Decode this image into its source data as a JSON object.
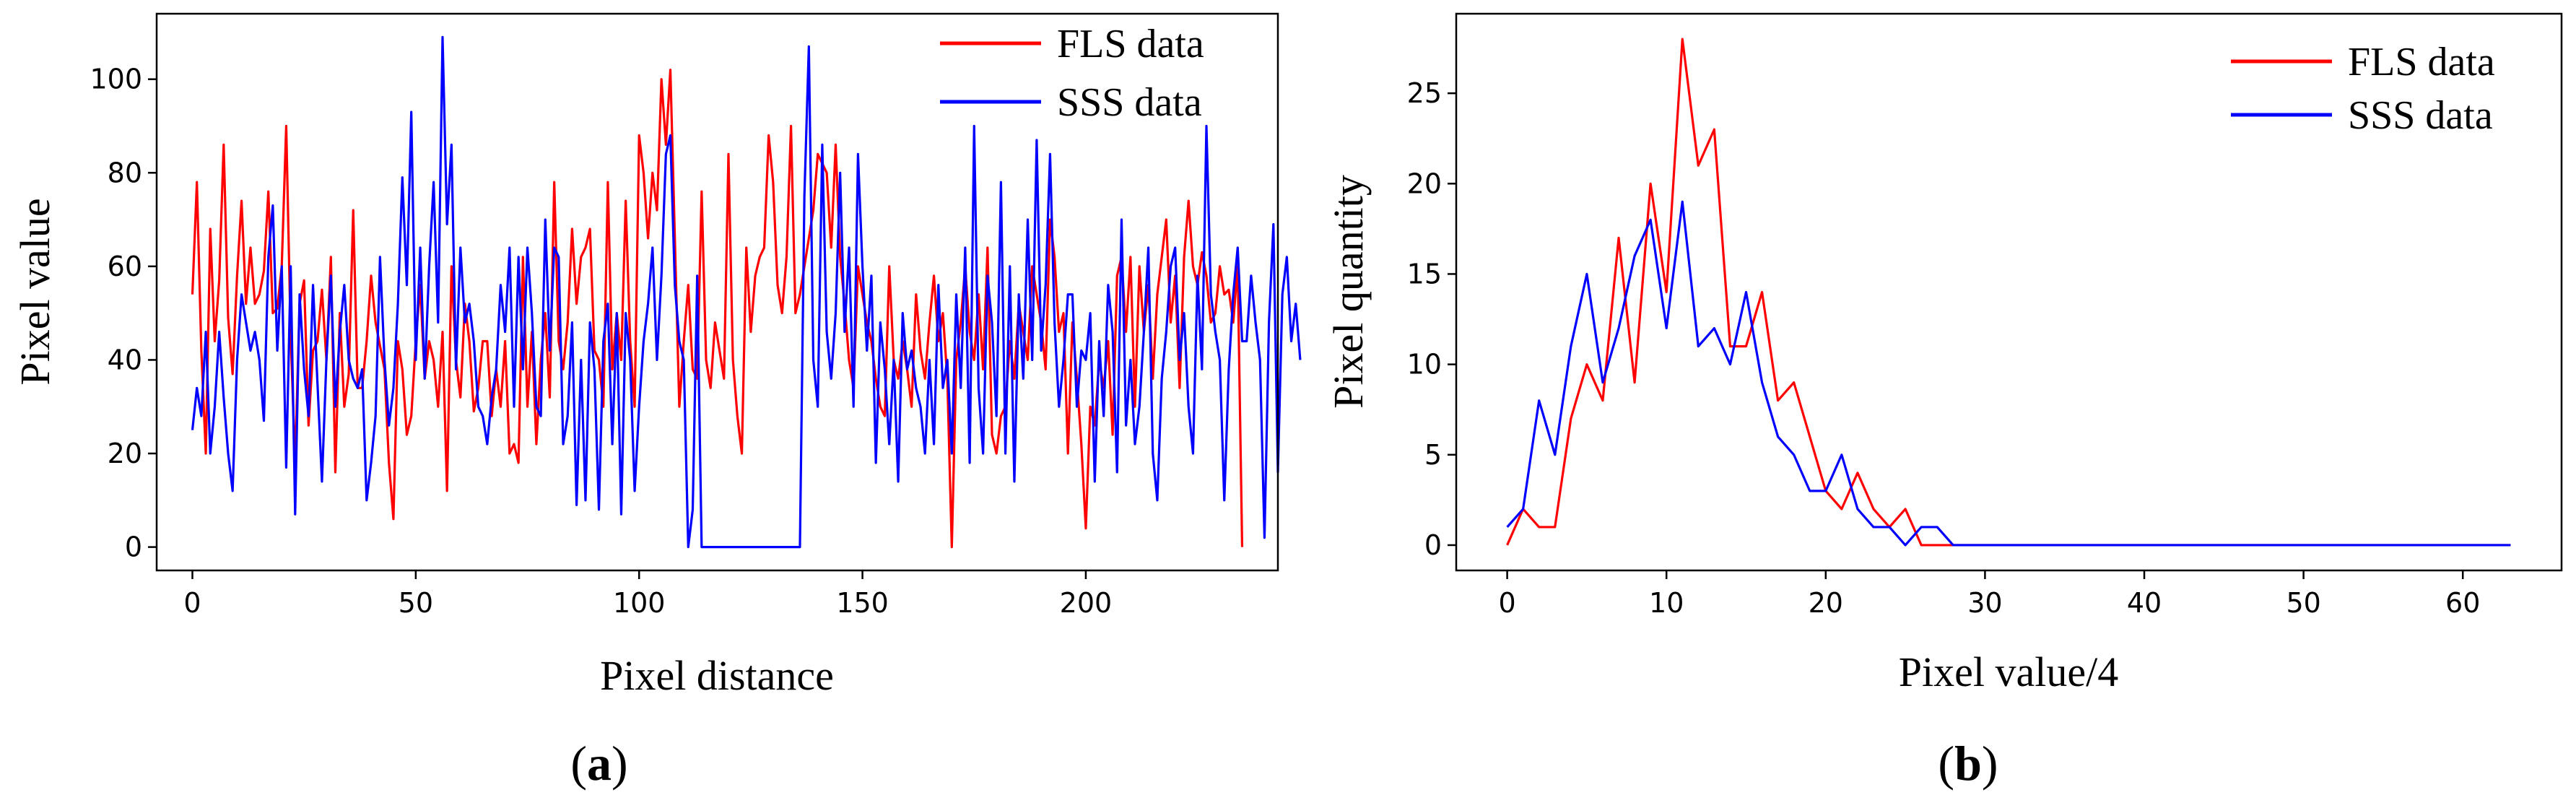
{
  "chart_data": [
    {
      "type": "line",
      "panel": "a",
      "caption": {
        "open": "(",
        "letter": "a",
        "close": ")"
      },
      "xlabel": "Pixel distance",
      "ylabel": "Pixel value",
      "xlim": [
        -8,
        243
      ],
      "ylim": [
        -5,
        114
      ],
      "xticks": [
        0,
        50,
        100,
        150,
        200
      ],
      "yticks": [
        0,
        20,
        40,
        60,
        80,
        100
      ],
      "grid": false,
      "legend": "top-right",
      "series": [
        {
          "name": "FLS data",
          "color": "#ff0000",
          "y": [
            54,
            78,
            42,
            20,
            68,
            44,
            57,
            86,
            49,
            37,
            58,
            74,
            52,
            64,
            52,
            54,
            59,
            76,
            50,
            51,
            60,
            90,
            45,
            18,
            52,
            57,
            26,
            42,
            44,
            55,
            40,
            62,
            16,
            50,
            30,
            37,
            72,
            34,
            34,
            44,
            58,
            48,
            43,
            38,
            18,
            6,
            44,
            38,
            24,
            28,
            44,
            56,
            36,
            44,
            40,
            30,
            46,
            12,
            60,
            40,
            32,
            52,
            44,
            29,
            34,
            44,
            44,
            28,
            38,
            30,
            44,
            20,
            22,
            18,
            62,
            30,
            46,
            22,
            40,
            50,
            32,
            78,
            44,
            38,
            48,
            68,
            52,
            62,
            64,
            68,
            42,
            40,
            30,
            78,
            38,
            50,
            40,
            74,
            44,
            30,
            88,
            80,
            66,
            80,
            72,
            100,
            86,
            102,
            66,
            30,
            44,
            56,
            38,
            36,
            76,
            40,
            34,
            48,
            42,
            36,
            84,
            40,
            28,
            20,
            64,
            46,
            58,
            62,
            64,
            88,
            78,
            56,
            50,
            62,
            90,
            50,
            54,
            60,
            66,
            72,
            84,
            82,
            80,
            64,
            86,
            62,
            52,
            40,
            34,
            60,
            54,
            48,
            44,
            36,
            30,
            28,
            60,
            40,
            36,
            44,
            38,
            30,
            54,
            42,
            36,
            48,
            58,
            44,
            50,
            36,
            0,
            40,
            48,
            60,
            46,
            40,
            54,
            38,
            64,
            24,
            20,
            28,
            30,
            44,
            36,
            52,
            46,
            40,
            60,
            54,
            48,
            38,
            70,
            62,
            46,
            50,
            20,
            48,
            36,
            22,
            4,
            30,
            26,
            40,
            34,
            44,
            24,
            58,
            62,
            46,
            62,
            30,
            60,
            46,
            56,
            36,
            54,
            62,
            70,
            48,
            58,
            34,
            62,
            74,
            60,
            56,
            63,
            58,
            48,
            50,
            60,
            54,
            55,
            48,
            60,
            0
          ]
        },
        {
          "name": "SSS data",
          "color": "#0000ff",
          "y": [
            25,
            34,
            28,
            46,
            20,
            30,
            46,
            32,
            20,
            12,
            40,
            54,
            48,
            42,
            46,
            40,
            27,
            62,
            73,
            42,
            60,
            17,
            60,
            7,
            54,
            38,
            28,
            56,
            35,
            14,
            40,
            58,
            30,
            46,
            56,
            40,
            36,
            34,
            38,
            10,
            18,
            28,
            62,
            40,
            26,
            34,
            52,
            79,
            56,
            93,
            40,
            64,
            36,
            60,
            78,
            48,
            109,
            69,
            86,
            38,
            64,
            48,
            52,
            44,
            30,
            28,
            22,
            32,
            38,
            56,
            46,
            64,
            30,
            62,
            38,
            64,
            50,
            30,
            28,
            70,
            42,
            64,
            62,
            22,
            28,
            48,
            9,
            40,
            10,
            48,
            38,
            8,
            44,
            52,
            22,
            50,
            7,
            50,
            40,
            12,
            30,
            44,
            52,
            64,
            40,
            58,
            84,
            88,
            56,
            44,
            40,
            0,
            8,
            58,
            0,
            0,
            0,
            0,
            0,
            0,
            0,
            0,
            0,
            0,
            0,
            0,
            0,
            0,
            0,
            0,
            0,
            0,
            0,
            0,
            0,
            0,
            0,
            75,
            107,
            40,
            30,
            86,
            46,
            36,
            50,
            80,
            46,
            64,
            30,
            84,
            60,
            42,
            58,
            18,
            48,
            38,
            22,
            40,
            14,
            50,
            38,
            42,
            34,
            30,
            20,
            40,
            22,
            56,
            34,
            40,
            20,
            54,
            34,
            64,
            18,
            90,
            34,
            20,
            58,
            48,
            28,
            78,
            20,
            60,
            14,
            54,
            36,
            70,
            40,
            87,
            42,
            56,
            84,
            48,
            30,
            40,
            54,
            54,
            30,
            42,
            40,
            50,
            14,
            44,
            28,
            56,
            46,
            16,
            70,
            26,
            40,
            22,
            30,
            46,
            64,
            20,
            10,
            36,
            46,
            60,
            64,
            40,
            50,
            30,
            20,
            58,
            38,
            90,
            54,
            46,
            40,
            10,
            38,
            54,
            64,
            44,
            44,
            58,
            48,
            40,
            2,
            48,
            69,
            16,
            54,
            62,
            44,
            52,
            40
          ]
        }
      ]
    },
    {
      "type": "line",
      "panel": "b",
      "caption": {
        "open": "(",
        "letter": "b",
        "close": ")"
      },
      "xlabel": "Pixel value/4",
      "ylabel": "Pixel quantity",
      "xlim": [
        -3.2,
        66.2
      ],
      "ylim": [
        -1.4,
        29.4
      ],
      "xticks": [
        0,
        10,
        20,
        30,
        40,
        50,
        60
      ],
      "yticks": [
        0,
        5,
        10,
        15,
        20,
        25
      ],
      "grid": false,
      "legend": "top-right",
      "series": [
        {
          "name": "FLS data",
          "color": "#ff0000",
          "y": [
            0,
            2,
            1,
            1,
            7,
            10,
            8,
            17,
            9,
            20,
            14,
            28,
            21,
            23,
            11,
            11,
            14,
            8,
            9,
            6,
            3,
            2,
            4,
            2,
            1,
            2,
            0,
            0,
            0,
            0,
            0,
            0,
            0,
            0,
            0,
            0,
            0,
            0,
            0,
            0,
            0,
            0,
            0,
            0,
            0,
            0,
            0,
            0,
            0,
            0,
            0,
            0,
            0,
            0,
            0,
            0,
            0,
            0,
            0,
            0,
            0,
            0,
            0,
            0
          ]
        },
        {
          "name": "SSS data",
          "color": "#0000ff",
          "y": [
            1,
            2,
            8,
            5,
            11,
            15,
            9,
            12,
            16,
            18,
            12,
            19,
            11,
            12,
            10,
            14,
            9,
            6,
            5,
            3,
            3,
            5,
            2,
            1,
            1,
            0,
            1,
            1,
            0,
            0,
            0,
            0,
            0,
            0,
            0,
            0,
            0,
            0,
            0,
            0,
            0,
            0,
            0,
            0,
            0,
            0,
            0,
            0,
            0,
            0,
            0,
            0,
            0,
            0,
            0,
            0,
            0,
            0,
            0,
            0,
            0,
            0,
            0,
            0
          ]
        }
      ]
    }
  ]
}
